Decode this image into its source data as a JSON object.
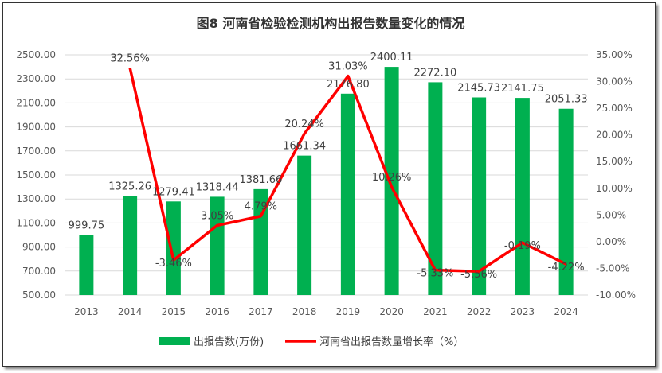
{
  "chart_data": {
    "type": "bar+line",
    "title": "图8  河南省检验检测机构出报告数量变化的情况",
    "categories": [
      "2013",
      "2014",
      "2015",
      "2016",
      "2017",
      "2018",
      "2019",
      "2020",
      "2021",
      "2022",
      "2023",
      "2024"
    ],
    "series": [
      {
        "name": "出报告数(万份)",
        "type": "bar",
        "axis": "left",
        "color": "#00B050",
        "values": [
          999.75,
          1325.26,
          1279.41,
          1318.44,
          1381.66,
          1661.34,
          2176.8,
          2400.11,
          2272.1,
          2145.73,
          2141.75,
          2051.33
        ],
        "labels": [
          "999.75",
          "1325.26",
          "1279.41",
          "1318.44",
          "1381.66",
          "1661.34",
          "2176.80",
          "2400.11",
          "2272.10",
          "2145.73",
          "2141.75",
          "2051.33"
        ]
      },
      {
        "name": "河南省出报告数量增长率（%）",
        "type": "line",
        "axis": "right",
        "color": "#FF0000",
        "values": [
          null,
          32.56,
          -3.46,
          3.05,
          4.79,
          20.24,
          31.03,
          10.26,
          -5.33,
          -5.56,
          -0.19,
          -4.22
        ],
        "labels": [
          "",
          "32.56%",
          "-3.46%",
          "3.05%",
          "4.79%",
          "20.24%",
          "31.03%",
          "10.26%",
          "-5.33%",
          "-5.56%",
          "-0.19%",
          "-4.22%"
        ]
      }
    ],
    "y_left": {
      "range": [
        500,
        2500
      ],
      "ticks": [
        "500.00",
        "700.00",
        "900.00",
        "1100.00",
        "1300.00",
        "1500.00",
        "1700.00",
        "1900.00",
        "2100.00",
        "2300.00",
        "2500.00"
      ]
    },
    "y_right": {
      "range": [
        -10,
        35
      ],
      "ticks": [
        "-10.00%",
        "-5.00%",
        "0.00%",
        "5.00%",
        "10.00%",
        "15.00%",
        "20.00%",
        "25.00%",
        "30.00%",
        "35.00%"
      ]
    },
    "grid": true,
    "legend": "bottom"
  }
}
